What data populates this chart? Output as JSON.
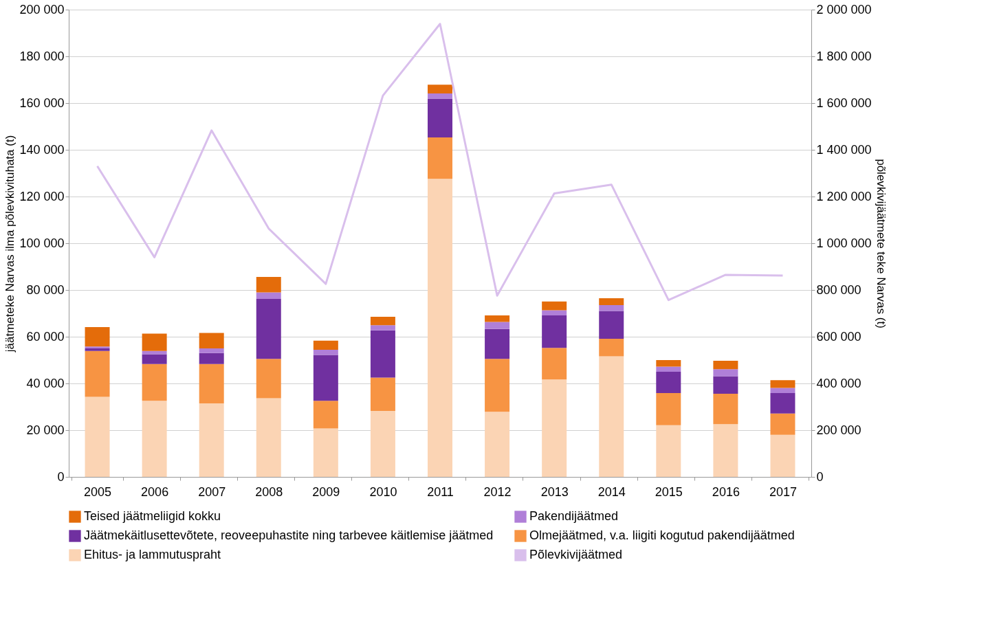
{
  "chart_data": {
    "type": "bar",
    "stacked": true,
    "ylabel": "jäätmeteke Narvas ilma põlevkivituhata (t)",
    "y2label": "põlevkivijäätmete teke Narvas (t)",
    "categories": [
      "2005",
      "2006",
      "2007",
      "2008",
      "2009",
      "2010",
      "2011",
      "2012",
      "2013",
      "2014",
      "2015",
      "2016",
      "2017"
    ],
    "series": [
      {
        "name": "Ehitus- ja lammutuspraht",
        "color": "#fbd4b4",
        "values": [
          34300,
          32600,
          31500,
          33700,
          20700,
          28200,
          127600,
          27900,
          41700,
          51600,
          22100,
          22600,
          18000
        ]
      },
      {
        "name": "Olmejäätmed, v.a. liigiti kogutud pakendijäätmed",
        "color": "#f79443",
        "values": [
          19600,
          15700,
          16800,
          16800,
          11900,
          14300,
          17700,
          22600,
          13500,
          7500,
          13800,
          13000,
          9100
        ]
      },
      {
        "name": "Jäätmekäitlusettevõtete, reoveepuhastite ning tarbevee käitlemise jäätmed",
        "color": "#7030a0",
        "values": [
          1100,
          4200,
          4700,
          25700,
          19600,
          20200,
          16600,
          12800,
          13900,
          11900,
          9100,
          7500,
          8800
        ]
      },
      {
        "name": "Pakendijäätmed",
        "color": "#b07fd8",
        "values": [
          800,
          1400,
          2000,
          2800,
          2200,
          2200,
          2200,
          3000,
          2200,
          2500,
          2200,
          3000,
          2200
        ]
      },
      {
        "name": "Teised jäätmeliigid kokku",
        "color": "#e46c0a",
        "values": [
          8300,
          7400,
          6600,
          6600,
          3900,
          3600,
          3800,
          2800,
          3800,
          3000,
          2800,
          3600,
          3300
        ]
      },
      {
        "name": "Põlevkivijäätmed",
        "type": "line",
        "axis": "y2",
        "line_style": "solid",
        "color": "#d9bfec",
        "values": [
          1330000,
          940000,
          1483000,
          1063000,
          826000,
          1632000,
          1939000,
          776000,
          1213000,
          1251000,
          757000,
          865000,
          862000
        ]
      }
    ],
    "ylim": [
      0,
      200000
    ],
    "yticks": [
      0,
      {
        "value": 20000,
        "label": "20 000"
      },
      {
        "value": 40000,
        "label": "40 000"
      },
      {
        "value": 60000,
        "label": "60 000"
      },
      {
        "value": 80000,
        "label": "80 000"
      },
      {
        "value": 100000,
        "label": "100 000"
      },
      {
        "value": 120000,
        "label": "120 000"
      },
      {
        "value": 140000,
        "label": "140 000"
      },
      {
        "value": 160000,
        "label": "160 000"
      },
      {
        "value": 180000,
        "label": "180 000"
      },
      {
        "value": 200000,
        "label": "200 000"
      }
    ],
    "y2lim": [
      0,
      2000000
    ],
    "y2ticks": [
      0,
      {
        "value": 200000,
        "label": "200 000"
      },
      {
        "value": 400000,
        "label": "400 000"
      },
      {
        "value": 600000,
        "label": "600 000"
      },
      {
        "value": 800000,
        "label": "800 000"
      },
      {
        "value": 1000000,
        "label": "1 000 000"
      },
      {
        "value": 1200000,
        "label": "1 200 000"
      },
      {
        "value": 1400000,
        "label": "1 400 000"
      },
      {
        "value": 1600000,
        "label": "1 600 000"
      },
      {
        "value": 1800000,
        "label": "1 800 000"
      },
      {
        "value": 2000000,
        "label": "2 000 000"
      }
    ],
    "grid": "y",
    "legend": "bottom"
  }
}
